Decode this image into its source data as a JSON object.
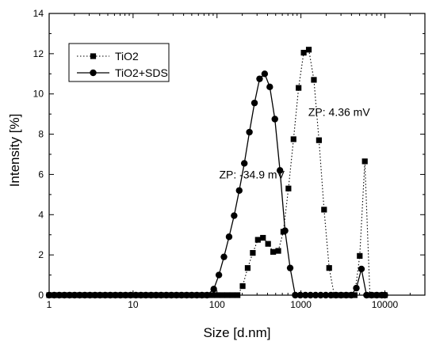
{
  "chart_data": {
    "type": "scatter",
    "xlabel": "Size [d.nm]",
    "ylabel": "Intensity [%]",
    "xscale": "log",
    "xlim": [
      1,
      30000
    ],
    "ylim": [
      0,
      14
    ],
    "xticks": [
      1,
      10,
      100,
      1000,
      10000
    ],
    "xtick_labels": [
      "1",
      "10",
      "100",
      "1000",
      "10000"
    ],
    "yticks": [
      0,
      2,
      4,
      6,
      8,
      10,
      12,
      14
    ],
    "ytick_labels": [
      "0",
      "2",
      "4",
      "6",
      "8",
      "10",
      "12",
      "14"
    ],
    "legend_position": "top-left",
    "series": [
      {
        "name": "TiO2",
        "marker": "square",
        "line_style": "dotted",
        "color": "#000000",
        "x": [
          1,
          1.15,
          1.32,
          1.52,
          1.75,
          2.01,
          2.31,
          2.66,
          3.06,
          3.52,
          4.04,
          4.65,
          5.35,
          6.15,
          7.07,
          8.13,
          9.35,
          10.8,
          12.4,
          14.2,
          16.4,
          18.8,
          21.6,
          24.9,
          28.6,
          32.9,
          37.8,
          43.5,
          50,
          57.5,
          66.1,
          76,
          87.4,
          100.5,
          115.6,
          132.9,
          152.8,
          175.7,
          202,
          232,
          267,
          307,
          353,
          406,
          467,
          537,
          617,
          710,
          816,
          938,
          1079,
          1241,
          1427,
          1641,
          1887,
          2170,
          2496,
          2870,
          3300,
          3795,
          4365,
          5019,
          5772,
          6638,
          7634,
          8778,
          10000
        ],
        "y": [
          0,
          0,
          0,
          0,
          0,
          0,
          0,
          0,
          0,
          0,
          0,
          0,
          0,
          0,
          0,
          0,
          0,
          0,
          0,
          0,
          0,
          0,
          0,
          0,
          0,
          0,
          0,
          0,
          0,
          0,
          0,
          0,
          0,
          0,
          0,
          0,
          0,
          0,
          0.45,
          1.35,
          2.1,
          2.75,
          2.85,
          2.55,
          2.15,
          2.2,
          3.15,
          5.3,
          7.75,
          10.3,
          12.05,
          12.2,
          10.7,
          7.7,
          4.25,
          1.35,
          0,
          0,
          0,
          0,
          0,
          1.95,
          6.65,
          0,
          0,
          0,
          0
        ]
      },
      {
        "name": "TiO2+SDS",
        "marker": "circle",
        "line_style": "solid",
        "color": "#000000",
        "x": [
          1,
          1.15,
          1.32,
          1.52,
          1.75,
          2.01,
          2.31,
          2.66,
          3.06,
          3.52,
          4.04,
          4.65,
          5.35,
          6.15,
          7.07,
          8.13,
          9.35,
          10.8,
          12.4,
          14.2,
          16.4,
          18.8,
          21.6,
          24.9,
          28.6,
          32.9,
          37.8,
          43.5,
          50,
          57.5,
          66.1,
          76,
          91.5,
          105.3,
          121,
          139.2,
          160,
          184,
          211.6,
          243.3,
          279.8,
          321.7,
          369.9,
          425.4,
          489.2,
          562.5,
          646.8,
          743.8,
          855.3,
          983.5,
          1131,
          1300,
          1495,
          1720,
          1978,
          2274,
          2615,
          3007,
          3458,
          3977,
          4573,
          5259,
          6047,
          6954,
          7997,
          9196,
          10000
        ],
        "y": [
          0,
          0,
          0,
          0,
          0,
          0,
          0,
          0,
          0,
          0,
          0,
          0,
          0,
          0,
          0,
          0,
          0,
          0,
          0,
          0,
          0,
          0,
          0,
          0,
          0,
          0,
          0,
          0,
          0,
          0,
          0,
          0,
          0.3,
          1.0,
          1.9,
          2.9,
          3.95,
          5.2,
          6.55,
          8.1,
          9.55,
          10.75,
          11.0,
          10.35,
          8.75,
          6.2,
          3.2,
          1.35,
          0,
          0,
          0,
          0,
          0,
          0,
          0,
          0,
          0,
          0,
          0,
          0,
          0.35,
          1.3,
          0,
          0,
          0,
          0,
          0
        ]
      }
    ],
    "annotations": [
      {
        "text": "ZP: 4.36 mV",
        "x": 2850,
        "y": 8.9
      },
      {
        "text": "ZP: -34.9 mV",
        "x": 260,
        "y": 5.8
      }
    ]
  }
}
